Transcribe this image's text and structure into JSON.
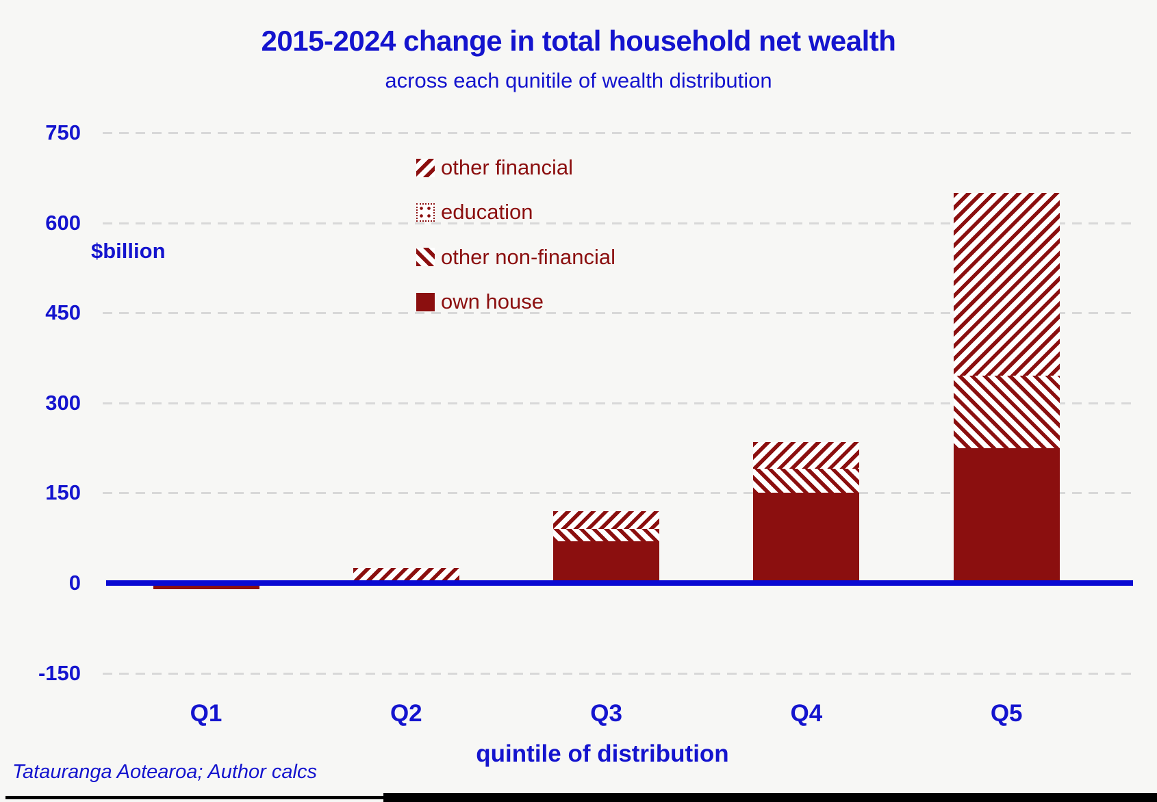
{
  "chart": {
    "title": "2015-2024 change in total household net wealth",
    "subtitle": "across each qunitile of wealth distribution",
    "y_axis_label": "$billion",
    "x_axis_label": "quintile of distribution",
    "source_note": "Tatauranga Aotearoa; Author calcs"
  },
  "chart_data": {
    "type": "bar",
    "stacked": true,
    "categories": [
      "Q1",
      "Q2",
      "Q3",
      "Q4",
      "Q5"
    ],
    "series": [
      {
        "name": "own house",
        "pattern": "solid",
        "values": [
          -10,
          0,
          70,
          150,
          225
        ]
      },
      {
        "name": "other non-financial",
        "pattern": "diagonal-back",
        "values": [
          0,
          0,
          20,
          40,
          120
        ]
      },
      {
        "name": "education",
        "pattern": "dots",
        "values": [
          7,
          0,
          0,
          0,
          0
        ]
      },
      {
        "name": "other financial",
        "pattern": "diagonal-fwd",
        "values": [
          0,
          25,
          30,
          45,
          305
        ]
      }
    ],
    "stack_totals": [
      -3,
      25,
      120,
      235,
      650
    ],
    "legend": [
      {
        "label": "other financial",
        "pattern": "diagonal-fwd"
      },
      {
        "label": "education",
        "pattern": "dots"
      },
      {
        "label": "other non-financial",
        "pattern": "diagonal-back"
      },
      {
        "label": "own house",
        "pattern": "solid"
      }
    ],
    "y_ticks": [
      750,
      600,
      450,
      300,
      150,
      0,
      -150
    ],
    "ylim": [
      -150,
      750
    ],
    "grid": true,
    "legend_position": "upper center-left inside plot",
    "colors": {
      "bar_red": "#8b0f0f",
      "axis_text_blue": "#1414ce",
      "zero_line_blue": "#0a0ad2",
      "gridline_grey": "#d8d8d8",
      "background": "#f7f7f5",
      "bottom_strip": "#000000"
    }
  }
}
